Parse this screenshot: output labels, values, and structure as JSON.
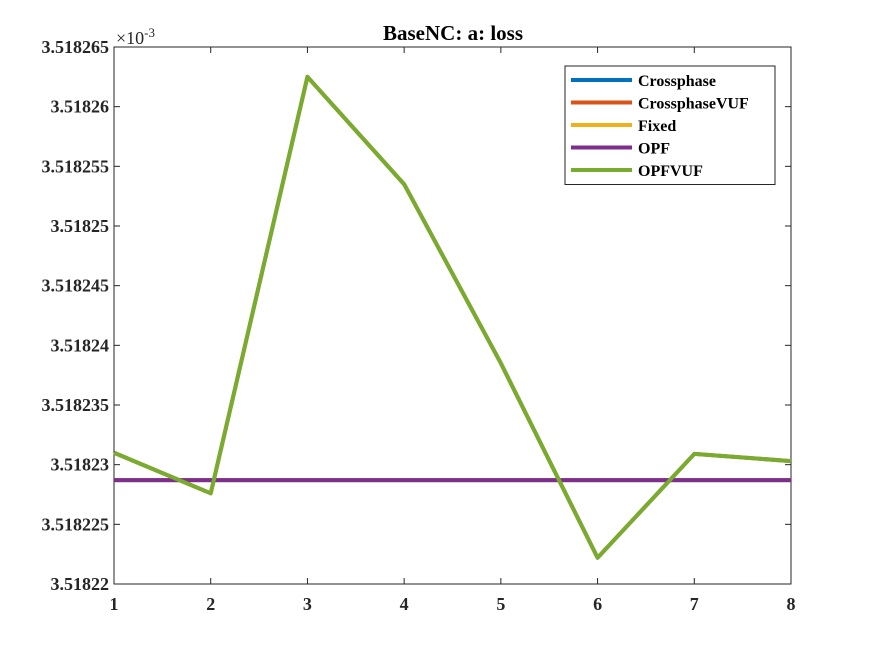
{
  "chart_data": {
    "type": "line",
    "title": "BaseNC: a: loss",
    "xlabel": "",
    "ylabel": "",
    "exponent_label": "×10",
    "exponent_power": "-3",
    "x": [
      1,
      2,
      3,
      4,
      5,
      6,
      7,
      8
    ],
    "xlim": [
      1,
      8
    ],
    "ylim": [
      3.51822,
      3.518265
    ],
    "x_ticks": [
      "1",
      "2",
      "3",
      "4",
      "5",
      "6",
      "7",
      "8"
    ],
    "y_ticks": [
      {
        "value": 3.51822,
        "label": "3.51822"
      },
      {
        "value": 3.518225,
        "label": "3.518225"
      },
      {
        "value": 3.51823,
        "label": "3.51823"
      },
      {
        "value": 3.518235,
        "label": "3.518235"
      },
      {
        "value": 3.51824,
        "label": "3.51824"
      },
      {
        "value": 3.518245,
        "label": "3.518245"
      },
      {
        "value": 3.51825,
        "label": "3.51825"
      },
      {
        "value": 3.518255,
        "label": "3.518255"
      },
      {
        "value": 3.51826,
        "label": "3.51826"
      },
      {
        "value": 3.518265,
        "label": "3.518265"
      }
    ],
    "grid": false,
    "legend_position": "top-right",
    "series": [
      {
        "name": "Crossphase",
        "color": "#0072BD",
        "values": [
          3.5182287,
          3.5182287,
          3.5182287,
          3.5182287,
          3.5182287,
          3.5182287,
          3.5182287,
          3.5182287
        ]
      },
      {
        "name": "CrossphaseVUF",
        "color": "#D95319",
        "values": [
          3.518231,
          3.5182276,
          3.5182625,
          3.5182535,
          3.5182385,
          3.5182222,
          3.5182309,
          3.5182303
        ]
      },
      {
        "name": "Fixed",
        "color": "#EDB120",
        "values": [
          3.5182287,
          3.5182287,
          3.5182287,
          3.5182287,
          3.5182287,
          3.5182287,
          3.5182287,
          3.5182287
        ]
      },
      {
        "name": "OPF",
        "color": "#7E2F8E",
        "values": [
          3.5182287,
          3.5182287,
          3.5182287,
          3.5182287,
          3.5182287,
          3.5182287,
          3.5182287,
          3.5182287
        ]
      },
      {
        "name": "OPFVUF",
        "color": "#77AC30",
        "values": [
          3.518231,
          3.5182276,
          3.5182625,
          3.5182535,
          3.5182385,
          3.5182222,
          3.5182309,
          3.5182303
        ]
      }
    ]
  }
}
